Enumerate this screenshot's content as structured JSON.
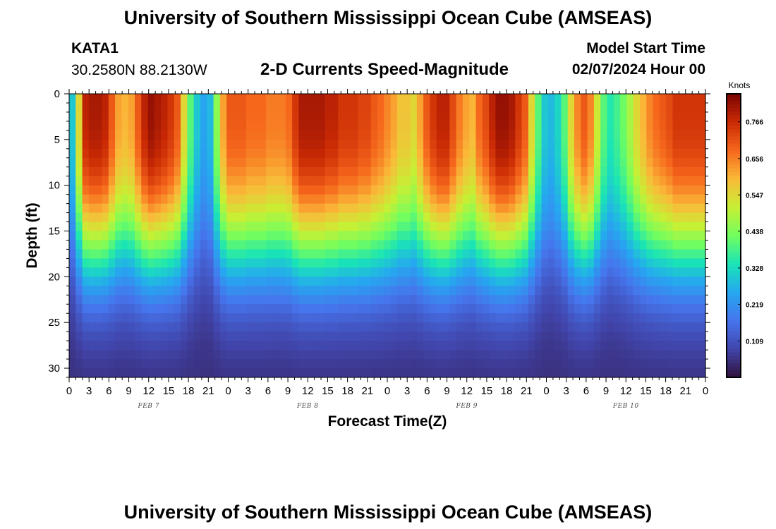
{
  "header": {
    "title": "University of Southern Mississippi Ocean Cube (AMSEAS)",
    "station": "KATA1",
    "coords": "30.2580N  88.2130W",
    "product": "2-D Currents Speed-Magnitude",
    "model_start_label": "Model Start Time",
    "model_start_value": "02/07/2024 Hour 00"
  },
  "footer": {
    "title": "University of Southern Mississippi Ocean Cube (AMSEAS)"
  },
  "chart_data": {
    "type": "heatmap",
    "xlabel": "Forecast Time(Z)",
    "ylabel": "Depth (ft)",
    "x_range_hours": [
      0,
      96
    ],
    "y_range_ft": [
      0,
      31
    ],
    "x_tick_labels": [
      "0",
      "3",
      "6",
      "9",
      "12",
      "15",
      "18",
      "21",
      "0",
      "3",
      "6",
      "9",
      "12",
      "15",
      "18",
      "21",
      "0",
      "3",
      "6",
      "9",
      "12",
      "15",
      "18",
      "21",
      "0",
      "3",
      "6",
      "9",
      "12",
      "15",
      "18",
      "21",
      "0"
    ],
    "y_ticks": [
      "0",
      "5",
      "10",
      "15",
      "20",
      "25",
      "30"
    ],
    "day_labels": [
      {
        "label": "FEB 7",
        "hour": 12
      },
      {
        "label": "FEB 8",
        "hour": 36
      },
      {
        "label": "FEB 9",
        "hour": 60
      },
      {
        "label": "FEB 10",
        "hour": 84
      }
    ],
    "colorbar": {
      "unit": "Knots",
      "min": 0.0,
      "max": 0.85,
      "ticks": [
        "0.766",
        "0.656",
        "0.547",
        "0.438",
        "0.328",
        "0.219",
        "0.109"
      ]
    },
    "surface_speed_knots": [
      0.3,
      0.55,
      0.78,
      0.8,
      0.8,
      0.78,
      0.7,
      0.62,
      0.6,
      0.62,
      0.7,
      0.78,
      0.82,
      0.8,
      0.78,
      0.75,
      0.7,
      0.55,
      0.4,
      0.3,
      0.25,
      0.28,
      0.45,
      0.62,
      0.7,
      0.7,
      0.7,
      0.68,
      0.68,
      0.68,
      0.66,
      0.66,
      0.66,
      0.68,
      0.75,
      0.8,
      0.8,
      0.8,
      0.8,
      0.78,
      0.78,
      0.75,
      0.75,
      0.75,
      0.73,
      0.73,
      0.7,
      0.68,
      0.65,
      0.62,
      0.58,
      0.58,
      0.55,
      0.62,
      0.7,
      0.75,
      0.78,
      0.78,
      0.72,
      0.66,
      0.62,
      0.6,
      0.68,
      0.72,
      0.78,
      0.82,
      0.82,
      0.8,
      0.75,
      0.7,
      0.55,
      0.4,
      0.3,
      0.28,
      0.32,
      0.4,
      0.55,
      0.65,
      0.7,
      0.65,
      0.52,
      0.4,
      0.35,
      0.38,
      0.42,
      0.48,
      0.55,
      0.6,
      0.65,
      0.68,
      0.7,
      0.72,
      0.75,
      0.75,
      0.75,
      0.75,
      0.75
    ]
  }
}
